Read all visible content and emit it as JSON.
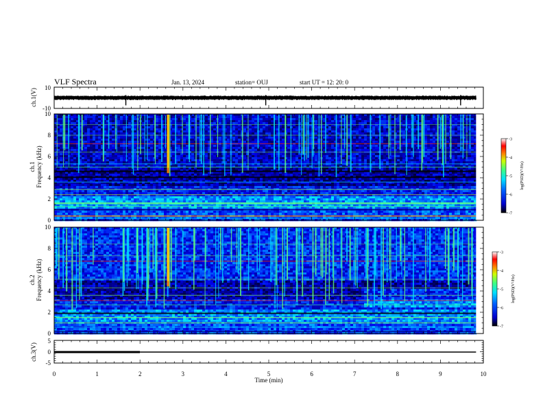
{
  "header": {
    "title": "VLF Spectra",
    "date": "Jan. 13, 2024",
    "station": "station= OUJ",
    "start": "start  UT =   12: 20: 0"
  },
  "chart_data": [
    {
      "type": "line",
      "panel": "ch1-waveform",
      "ylabel": "ch.1(V)",
      "ylim": [
        -10,
        10
      ],
      "yticks": [
        "10",
        "-10"
      ],
      "xlim": [
        0,
        10
      ],
      "description_values": {
        "baseline_v": 0,
        "spike_times_min": [
          1.67,
          4.93,
          9.47
        ]
      }
    },
    {
      "type": "heatmap",
      "panel": "ch1-spectrogram",
      "ylabel": "ch.1\nFrequency (kHz)",
      "ylabel_line1": "ch.1",
      "ylabel_line2": "Frequency  (kHz)",
      "ylim": [
        0,
        10
      ],
      "yticks": [
        "0",
        "2",
        "4",
        "6",
        "8",
        "10"
      ],
      "xlim": [
        0,
        10
      ],
      "colorbar": {
        "label": "log(PSD)(V²/Hz)",
        "range": [
          -7,
          -3
        ],
        "ticks": [
          "-3",
          "-4",
          "-5",
          "-6",
          "-7"
        ]
      }
    },
    {
      "type": "heatmap",
      "panel": "ch2-spectrogram",
      "ylabel_line1": "ch.2",
      "ylabel_line2": "Frequency  (kHz)",
      "ylim": [
        0,
        10
      ],
      "yticks": [
        "0",
        "2",
        "4",
        "6",
        "8",
        "10"
      ],
      "xlim": [
        0,
        10
      ],
      "colorbar": {
        "label": "log(PSD)(V²/Hz)",
        "range": [
          -7,
          -3
        ],
        "ticks": [
          "-3",
          "-4",
          "-5",
          "-6",
          "-7"
        ]
      }
    },
    {
      "type": "line",
      "panel": "ch3-waveform",
      "ylabel": "ch.3(V)",
      "ylim": [
        -5,
        5
      ],
      "yticks": [
        "5",
        "0",
        "-5"
      ],
      "xlim": [
        0,
        10
      ],
      "series": [
        {
          "x": [
            0,
            2.0
          ],
          "y": [
            0,
            0
          ],
          "style": "thick"
        },
        {
          "x": [
            2.0,
            9.83
          ],
          "y": [
            0,
            0
          ],
          "style": "thin"
        }
      ]
    }
  ],
  "xaxis": {
    "label": "Time  (min)",
    "ticks": [
      "0",
      "1",
      "2",
      "3",
      "4",
      "5",
      "6",
      "7",
      "8",
      "9",
      "10"
    ]
  },
  "colors": {
    "colormap": [
      "#000000",
      "#00007f",
      "#0000ff",
      "#007fff",
      "#00ffff",
      "#7fff7f",
      "#ffff00",
      "#ff7f00",
      "#ff0000",
      "#ffffff"
    ]
  }
}
